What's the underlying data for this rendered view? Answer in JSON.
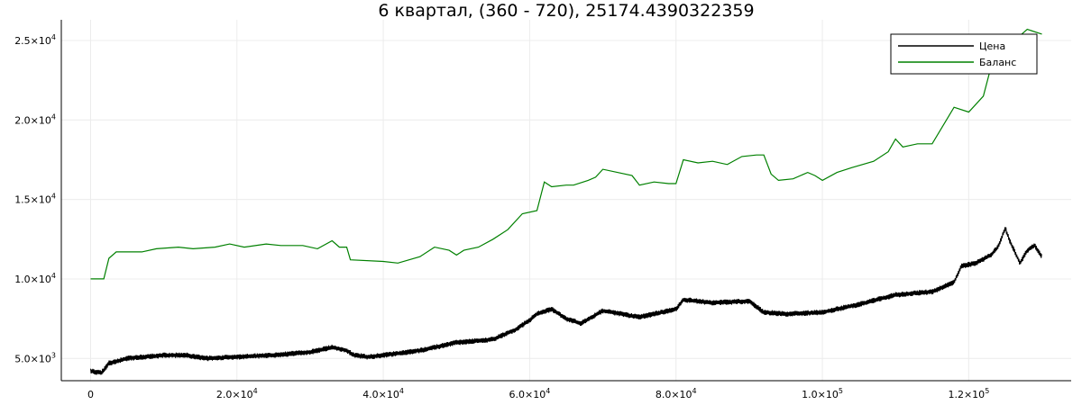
{
  "chart_data": {
    "type": "line",
    "title": "6 квартал, (360 - 720), 25174.4390322359",
    "xlabel": "",
    "ylabel": "",
    "xlim": [
      -4000,
      134000
    ],
    "ylim": [
      3600,
      26300
    ],
    "x_ticks": [
      {
        "value": 0,
        "mant": "0",
        "exp": ""
      },
      {
        "value": 20000,
        "mant": "2.0×10",
        "exp": "4"
      },
      {
        "value": 40000,
        "mant": "4.0×10",
        "exp": "4"
      },
      {
        "value": 60000,
        "mant": "6.0×10",
        "exp": "4"
      },
      {
        "value": 80000,
        "mant": "8.0×10",
        "exp": "4"
      },
      {
        "value": 100000,
        "mant": "1.0×10",
        "exp": "5"
      },
      {
        "value": 120000,
        "mant": "1.2×10",
        "exp": "5"
      }
    ],
    "y_ticks": [
      {
        "value": 5000,
        "mant": "5.0×10",
        "exp": "3"
      },
      {
        "value": 10000,
        "mant": "1.0×10",
        "exp": "4"
      },
      {
        "value": 15000,
        "mant": "1.5×10",
        "exp": "4"
      },
      {
        "value": 20000,
        "mant": "2.0×10",
        "exp": "4"
      },
      {
        "value": 25000,
        "mant": "2.5×10",
        "exp": "4"
      }
    ],
    "grid": true,
    "legend_position": "top-right",
    "series": [
      {
        "name": "Цена",
        "color": "#000000",
        "noise_band": 350,
        "x": [
          0,
          1500,
          2500,
          5000,
          10000,
          13000,
          16000,
          20000,
          25000,
          30000,
          33000,
          35000,
          36000,
          38000,
          40000,
          45000,
          50000,
          55000,
          58000,
          60000,
          61000,
          63000,
          65000,
          67000,
          70000,
          75000,
          80000,
          81000,
          85000,
          90000,
          92000,
          95000,
          100000,
          105000,
          110000,
          115000,
          118000,
          119000,
          121000,
          123000,
          124000,
          125000,
          125500,
          126000,
          127000,
          128000,
          129000,
          130000
        ],
        "y": [
          4200,
          4100,
          4700,
          5000,
          5200,
          5200,
          5000,
          5100,
          5200,
          5400,
          5700,
          5500,
          5200,
          5100,
          5200,
          5500,
          6000,
          6200,
          6800,
          7400,
          7800,
          8100,
          7500,
          7200,
          8000,
          7600,
          8100,
          8700,
          8500,
          8600,
          7900,
          7800,
          7900,
          8400,
          9000,
          9200,
          9800,
          10800,
          11000,
          11500,
          12000,
          13200,
          12500,
          12000,
          11000,
          11800,
          12100,
          11400
        ]
      },
      {
        "name": "Баланс",
        "color": "#008000",
        "noise_band": 0,
        "x": [
          0,
          1800,
          2500,
          3500,
          7000,
          9000,
          12000,
          14000,
          17000,
          19000,
          21000,
          24000,
          26000,
          29000,
          31000,
          33000,
          34000,
          35000,
          35500,
          40000,
          42000,
          45000,
          47000,
          49000,
          50000,
          51000,
          53000,
          55000,
          57000,
          59000,
          61000,
          62000,
          63000,
          65000,
          66000,
          68000,
          69000,
          70000,
          72000,
          74000,
          75000,
          77000,
          79000,
          80000,
          81000,
          83000,
          85000,
          87000,
          89000,
          91000,
          92000,
          93000,
          94000,
          96000,
          98000,
          99000,
          100000,
          102000,
          104000,
          107000,
          109000,
          110000,
          111000,
          113000,
          115000,
          118000,
          120000,
          122000,
          124000,
          125000,
          126000,
          127000,
          128000,
          130000
        ],
        "y": [
          10000,
          10000,
          11300,
          11700,
          11700,
          11900,
          12000,
          11900,
          12000,
          12200,
          12000,
          12200,
          12100,
          12100,
          11900,
          12400,
          12000,
          12000,
          11200,
          11100,
          11000,
          11400,
          12000,
          11800,
          11500,
          11800,
          12000,
          12500,
          13100,
          14100,
          14300,
          16100,
          15800,
          15900,
          15900,
          16200,
          16400,
          16900,
          16700,
          16500,
          15900,
          16100,
          16000,
          16000,
          17500,
          17300,
          17400,
          17200,
          17700,
          17800,
          17800,
          16600,
          16200,
          16300,
          16700,
          16500,
          16200,
          16700,
          17000,
          17400,
          18000,
          18800,
          18300,
          18500,
          18500,
          20800,
          20500,
          21500,
          25000,
          25300,
          25000,
          25300,
          25700,
          25400
        ]
      }
    ]
  }
}
